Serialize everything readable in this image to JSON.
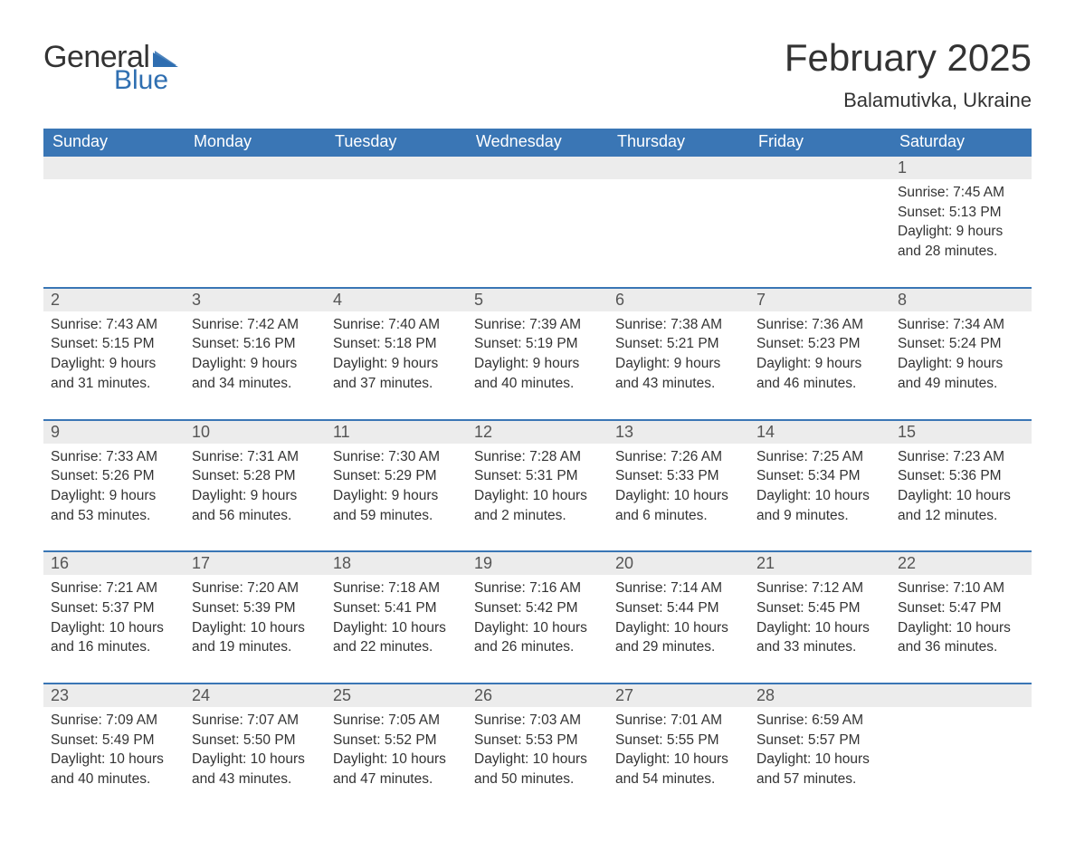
{
  "brand": {
    "text1": "General",
    "text2": "Blue",
    "icon_color": "#2f6fb1"
  },
  "header": {
    "month_title": "February 2025",
    "location": "Balamutivka, Ukraine"
  },
  "theme": {
    "header_bg": "#3a76b5",
    "header_text": "#ffffff",
    "daynum_bg": "#ececec",
    "daynum_border": "#3a76b5",
    "body_text": "#333333",
    "page_bg": "#ffffff"
  },
  "day_labels": [
    "Sunday",
    "Monday",
    "Tuesday",
    "Wednesday",
    "Thursday",
    "Friday",
    "Saturday"
  ],
  "weeks": [
    [
      null,
      null,
      null,
      null,
      null,
      null,
      {
        "n": "1",
        "sr": "Sunrise: 7:45 AM",
        "ss": "Sunset: 5:13 PM",
        "d1": "Daylight: 9 hours",
        "d2": "and 28 minutes."
      }
    ],
    [
      {
        "n": "2",
        "sr": "Sunrise: 7:43 AM",
        "ss": "Sunset: 5:15 PM",
        "d1": "Daylight: 9 hours",
        "d2": "and 31 minutes."
      },
      {
        "n": "3",
        "sr": "Sunrise: 7:42 AM",
        "ss": "Sunset: 5:16 PM",
        "d1": "Daylight: 9 hours",
        "d2": "and 34 minutes."
      },
      {
        "n": "4",
        "sr": "Sunrise: 7:40 AM",
        "ss": "Sunset: 5:18 PM",
        "d1": "Daylight: 9 hours",
        "d2": "and 37 minutes."
      },
      {
        "n": "5",
        "sr": "Sunrise: 7:39 AM",
        "ss": "Sunset: 5:19 PM",
        "d1": "Daylight: 9 hours",
        "d2": "and 40 minutes."
      },
      {
        "n": "6",
        "sr": "Sunrise: 7:38 AM",
        "ss": "Sunset: 5:21 PM",
        "d1": "Daylight: 9 hours",
        "d2": "and 43 minutes."
      },
      {
        "n": "7",
        "sr": "Sunrise: 7:36 AM",
        "ss": "Sunset: 5:23 PM",
        "d1": "Daylight: 9 hours",
        "d2": "and 46 minutes."
      },
      {
        "n": "8",
        "sr": "Sunrise: 7:34 AM",
        "ss": "Sunset: 5:24 PM",
        "d1": "Daylight: 9 hours",
        "d2": "and 49 minutes."
      }
    ],
    [
      {
        "n": "9",
        "sr": "Sunrise: 7:33 AM",
        "ss": "Sunset: 5:26 PM",
        "d1": "Daylight: 9 hours",
        "d2": "and 53 minutes."
      },
      {
        "n": "10",
        "sr": "Sunrise: 7:31 AM",
        "ss": "Sunset: 5:28 PM",
        "d1": "Daylight: 9 hours",
        "d2": "and 56 minutes."
      },
      {
        "n": "11",
        "sr": "Sunrise: 7:30 AM",
        "ss": "Sunset: 5:29 PM",
        "d1": "Daylight: 9 hours",
        "d2": "and 59 minutes."
      },
      {
        "n": "12",
        "sr": "Sunrise: 7:28 AM",
        "ss": "Sunset: 5:31 PM",
        "d1": "Daylight: 10 hours",
        "d2": "and 2 minutes."
      },
      {
        "n": "13",
        "sr": "Sunrise: 7:26 AM",
        "ss": "Sunset: 5:33 PM",
        "d1": "Daylight: 10 hours",
        "d2": "and 6 minutes."
      },
      {
        "n": "14",
        "sr": "Sunrise: 7:25 AM",
        "ss": "Sunset: 5:34 PM",
        "d1": "Daylight: 10 hours",
        "d2": "and 9 minutes."
      },
      {
        "n": "15",
        "sr": "Sunrise: 7:23 AM",
        "ss": "Sunset: 5:36 PM",
        "d1": "Daylight: 10 hours",
        "d2": "and 12 minutes."
      }
    ],
    [
      {
        "n": "16",
        "sr": "Sunrise: 7:21 AM",
        "ss": "Sunset: 5:37 PM",
        "d1": "Daylight: 10 hours",
        "d2": "and 16 minutes."
      },
      {
        "n": "17",
        "sr": "Sunrise: 7:20 AM",
        "ss": "Sunset: 5:39 PM",
        "d1": "Daylight: 10 hours",
        "d2": "and 19 minutes."
      },
      {
        "n": "18",
        "sr": "Sunrise: 7:18 AM",
        "ss": "Sunset: 5:41 PM",
        "d1": "Daylight: 10 hours",
        "d2": "and 22 minutes."
      },
      {
        "n": "19",
        "sr": "Sunrise: 7:16 AM",
        "ss": "Sunset: 5:42 PM",
        "d1": "Daylight: 10 hours",
        "d2": "and 26 minutes."
      },
      {
        "n": "20",
        "sr": "Sunrise: 7:14 AM",
        "ss": "Sunset: 5:44 PM",
        "d1": "Daylight: 10 hours",
        "d2": "and 29 minutes."
      },
      {
        "n": "21",
        "sr": "Sunrise: 7:12 AM",
        "ss": "Sunset: 5:45 PM",
        "d1": "Daylight: 10 hours",
        "d2": "and 33 minutes."
      },
      {
        "n": "22",
        "sr": "Sunrise: 7:10 AM",
        "ss": "Sunset: 5:47 PM",
        "d1": "Daylight: 10 hours",
        "d2": "and 36 minutes."
      }
    ],
    [
      {
        "n": "23",
        "sr": "Sunrise: 7:09 AM",
        "ss": "Sunset: 5:49 PM",
        "d1": "Daylight: 10 hours",
        "d2": "and 40 minutes."
      },
      {
        "n": "24",
        "sr": "Sunrise: 7:07 AM",
        "ss": "Sunset: 5:50 PM",
        "d1": "Daylight: 10 hours",
        "d2": "and 43 minutes."
      },
      {
        "n": "25",
        "sr": "Sunrise: 7:05 AM",
        "ss": "Sunset: 5:52 PM",
        "d1": "Daylight: 10 hours",
        "d2": "and 47 minutes."
      },
      {
        "n": "26",
        "sr": "Sunrise: 7:03 AM",
        "ss": "Sunset: 5:53 PM",
        "d1": "Daylight: 10 hours",
        "d2": "and 50 minutes."
      },
      {
        "n": "27",
        "sr": "Sunrise: 7:01 AM",
        "ss": "Sunset: 5:55 PM",
        "d1": "Daylight: 10 hours",
        "d2": "and 54 minutes."
      },
      {
        "n": "28",
        "sr": "Sunrise: 6:59 AM",
        "ss": "Sunset: 5:57 PM",
        "d1": "Daylight: 10 hours",
        "d2": "and 57 minutes."
      },
      null
    ]
  ]
}
